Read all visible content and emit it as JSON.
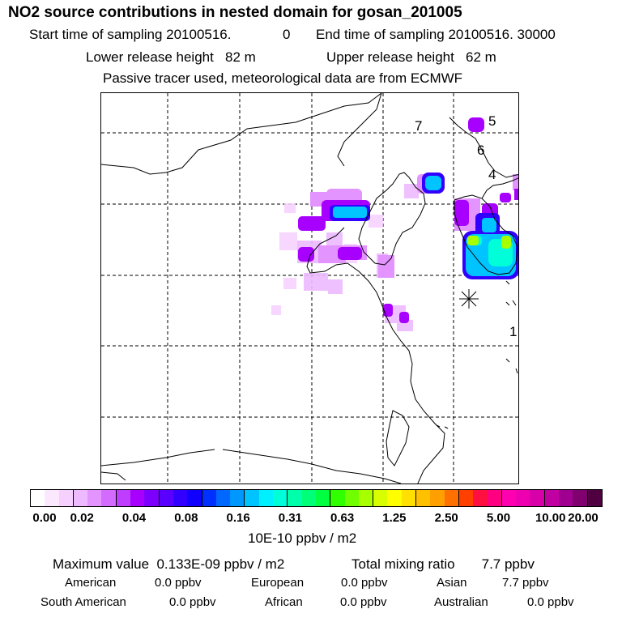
{
  "header": {
    "title": "NO2 source contributions in nested domain for gosan_201005",
    "start_label": "Start time of sampling 20100516.",
    "start_value": "0",
    "end_label": "End time of sampling 20100516. 30000",
    "lower_release": "Lower release height   82 m",
    "upper_release": "Upper release height   62 m",
    "tracer_note": "Passive tracer used, meteorological data are from ECMWF"
  },
  "map": {
    "site_markers": [
      "1",
      "4",
      "5",
      "6",
      "7"
    ],
    "receptor_icon": "asterisk-icon"
  },
  "colorbar": {
    "ticks": [
      "0.00",
      "0.02",
      "0.04",
      "0.08",
      "0.16",
      "0.31",
      "0.63",
      "1.25",
      "2.50",
      "5.00",
      "10.00",
      "20.00"
    ],
    "unit": "10E-10 ppbv / m2",
    "colors": [
      "#ffffff",
      "#fbe8ff",
      "#f6d0ff",
      "#eebaff",
      "#e394ff",
      "#d36bff",
      "#bf3dff",
      "#a800ff",
      "#7d00ff",
      "#5a00ff",
      "#3200ff",
      "#1000ff",
      "#0030ff",
      "#0068ff",
      "#0098ff",
      "#00c4ff",
      "#00f0ff",
      "#00ffd8",
      "#00ffaa",
      "#00ff78",
      "#00ff40",
      "#30ff00",
      "#70ff00",
      "#a8ff00",
      "#d8ff00",
      "#ffff00",
      "#ffe000",
      "#ffc000",
      "#ffa000",
      "#ff7000",
      "#ff4000",
      "#ff1040",
      "#ff0080",
      "#ff00b0",
      "#ee00b0",
      "#d800a8",
      "#c000a0",
      "#a00090",
      "#800070",
      "#500040"
    ]
  },
  "stats": {
    "maximum": "Maximum value  0.133E-09 ppbv / m2",
    "total": "Total mixing ratio       7.7 ppbv",
    "regions": [
      {
        "name": "American",
        "value": "0.0 ppbv"
      },
      {
        "name": "European",
        "value": "0.0 ppbv"
      },
      {
        "name": "Asian",
        "value": "7.7 ppbv"
      },
      {
        "name": "South American",
        "value": "0.0 ppbv"
      },
      {
        "name": "African",
        "value": "0.0 ppbv"
      },
      {
        "name": "Australian",
        "value": "0.0 ppbv"
      }
    ]
  }
}
